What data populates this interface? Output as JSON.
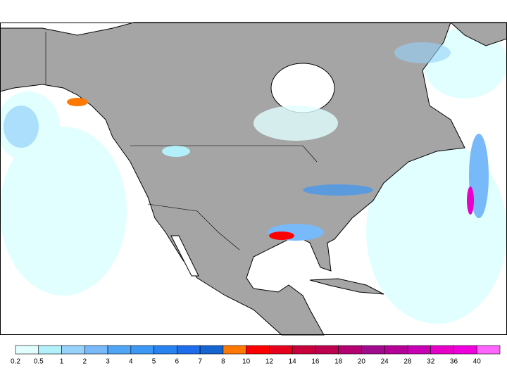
{
  "colorbar": {
    "ticks": [
      0.2,
      0.5,
      1,
      2,
      3,
      4,
      5,
      6,
      7,
      8,
      10,
      12,
      14,
      16,
      18,
      20,
      24,
      28,
      32,
      36,
      40
    ],
    "colors": [
      "#e1ffff",
      "#b4f0fa",
      "#96d2fa",
      "#78b9fa",
      "#50a5f5",
      "#3c97f5",
      "#2882f0",
      "#1e6eeb",
      "#1464d2",
      "#ff7800",
      "#ff0000",
      "#e6001e",
      "#c8003c",
      "#be0050",
      "#b40070",
      "#a00a8c",
      "#b40096",
      "#c800b4",
      "#e600c8",
      "#f000dc",
      "#ff64ff"
    ]
  }
}
